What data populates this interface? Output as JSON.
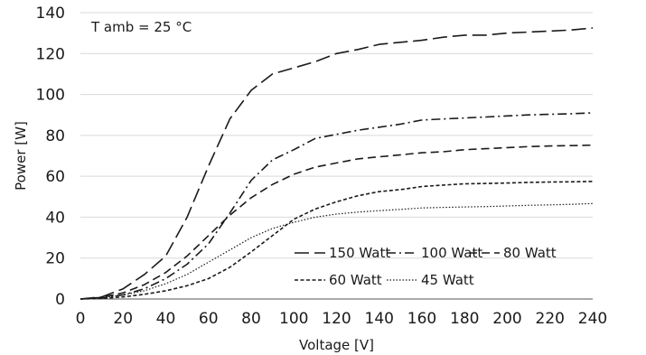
{
  "chart_data": {
    "type": "line",
    "xlabel": "Voltage  [V]",
    "ylabel": "Power [W]",
    "annotation": "T amb = 25 °C",
    "xlim": [
      0,
      240
    ],
    "ylim": [
      0,
      140
    ],
    "xticks": [
      0,
      20,
      40,
      60,
      80,
      100,
      120,
      140,
      160,
      180,
      200,
      220,
      240
    ],
    "yticks": [
      0,
      20,
      40,
      60,
      80,
      100,
      120,
      140
    ],
    "grid": "horizontal",
    "legend_position": "bottom-right",
    "series": [
      {
        "name": "150 Watt",
        "dash": "dash-long",
        "x": [
          0,
          10,
          20,
          30,
          40,
          50,
          60,
          70,
          80,
          90,
          100,
          110,
          120,
          130,
          140,
          150,
          160,
          170,
          180,
          190,
          200,
          210,
          220,
          230,
          240
        ],
        "y": [
          0,
          1,
          5,
          12,
          21,
          40,
          65,
          88,
          102,
          110,
          113,
          116,
          120,
          122,
          124.5,
          125.5,
          126.5,
          128,
          129,
          129,
          130,
          130.5,
          131,
          131.5,
          132.5
        ]
      },
      {
        "name": "100 Watt",
        "dash": "dash-dot",
        "x": [
          0,
          10,
          20,
          30,
          40,
          50,
          60,
          70,
          80,
          90,
          100,
          110,
          120,
          130,
          140,
          150,
          160,
          170,
          180,
          190,
          200,
          210,
          220,
          230,
          240
        ],
        "y": [
          0,
          0.5,
          2,
          5,
          10,
          17,
          27,
          42,
          58,
          68,
          73,
          78.5,
          80.5,
          82.5,
          84,
          85.5,
          87.5,
          88,
          88.5,
          89,
          89.5,
          90,
          90.3,
          90.6,
          91
        ]
      },
      {
        "name": "80 Watt",
        "dash": "dash-medium",
        "x": [
          0,
          10,
          20,
          30,
          40,
          50,
          60,
          70,
          80,
          90,
          100,
          110,
          120,
          130,
          140,
          150,
          160,
          170,
          180,
          190,
          200,
          210,
          220,
          230,
          240
        ],
        "y": [
          0,
          0.8,
          3,
          7,
          13,
          21,
          31,
          41,
          49.5,
          56,
          61,
          64.5,
          66.5,
          68.5,
          69.5,
          70.5,
          71.5,
          72,
          73,
          73.5,
          74,
          74.5,
          74.8,
          75,
          75.2
        ]
      },
      {
        "name": "60 Watt",
        "dash": "dash-short",
        "x": [
          0,
          10,
          20,
          30,
          40,
          50,
          60,
          70,
          80,
          90,
          100,
          110,
          120,
          130,
          140,
          150,
          160,
          170,
          180,
          190,
          200,
          210,
          220,
          230,
          240
        ],
        "y": [
          0,
          0.3,
          1,
          2.3,
          4,
          6.5,
          10,
          15.5,
          23,
          31,
          39,
          44,
          47.5,
          50.5,
          52.5,
          53.5,
          55,
          55.7,
          56.3,
          56.5,
          56.7,
          57,
          57.2,
          57.3,
          57.5
        ]
      },
      {
        "name": "45 Watt",
        "dash": "dotted",
        "x": [
          0,
          10,
          20,
          30,
          40,
          50,
          60,
          70,
          80,
          90,
          100,
          110,
          120,
          130,
          140,
          150,
          160,
          170,
          180,
          190,
          200,
          210,
          220,
          230,
          240
        ],
        "y": [
          0,
          0.5,
          2,
          4,
          7.5,
          12,
          18,
          24,
          30,
          34.5,
          37.5,
          40,
          41.5,
          42.5,
          43.2,
          43.8,
          44.5,
          44.8,
          45,
          45.2,
          45.5,
          45.8,
          46,
          46.3,
          46.7
        ]
      }
    ],
    "legend": {
      "columns": 3,
      "order": [
        "150 Watt",
        "100 Watt",
        "80 Watt",
        "60 Watt",
        "45 Watt"
      ]
    }
  }
}
